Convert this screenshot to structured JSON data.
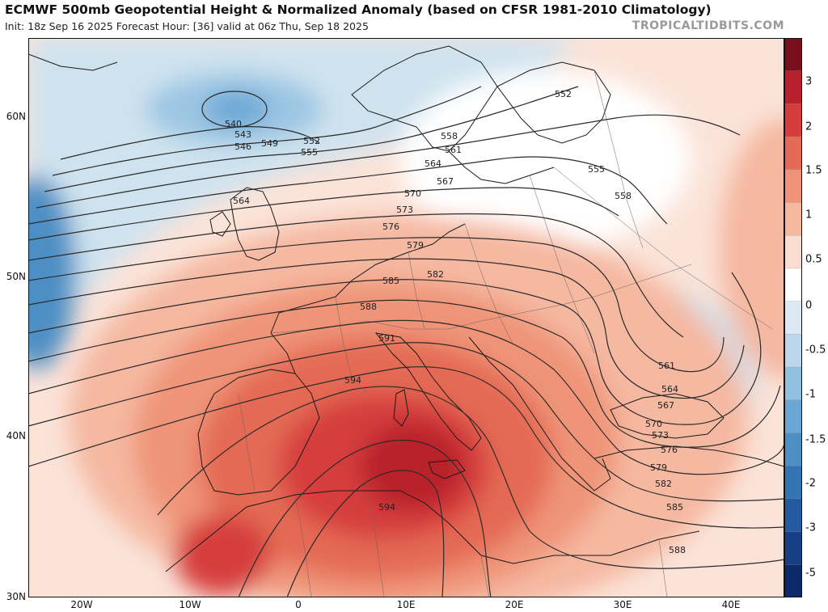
{
  "header": {
    "title": "ECMWF 500mb Geopotential Height & Normalized Anomaly (based on CFSR 1981-2010 Climatology)",
    "subtitle": "Init: 18z Sep 16 2025   Forecast Hour: [36]   valid at 06z Thu, Sep 18 2025",
    "credit": "TROPICALTIDBITS.COM"
  },
  "map": {
    "lat_labels": [
      "60N",
      "50N",
      "40N",
      "30N"
    ],
    "lon_labels": [
      "20W",
      "10W",
      "0",
      "10E",
      "20E",
      "30E",
      "40E"
    ],
    "height_labels": [
      "540",
      "543",
      "546",
      "549",
      "552",
      "555",
      "558",
      "561",
      "564",
      "567",
      "570",
      "573",
      "576",
      "579",
      "582",
      "585",
      "588",
      "591",
      "594",
      "594",
      "552",
      "555",
      "558",
      "561",
      "564",
      "567",
      "570",
      "573",
      "576",
      "579",
      "582",
      "585",
      "588",
      "564"
    ],
    "colors": {
      "strong_positive": "#b8202c",
      "positive": "#e8735a",
      "weak_positive": "#f7c5b0",
      "weak_negative": "#cfe3ef",
      "negative": "#5c9ccc",
      "contour": "#2b2b2b"
    }
  },
  "colorbar": {
    "ticks": [
      "3",
      "2",
      "1.5",
      "1",
      "0.5",
      "0",
      "-0.5",
      "-1",
      "-1.5",
      "-2",
      "-3",
      "-5"
    ],
    "colors": [
      "#7a0f1c",
      "#b8202c",
      "#d63c3c",
      "#e46a55",
      "#ef9478",
      "#f5b8a0",
      "#fadcd0",
      "#ffffff",
      "#dce9f2",
      "#bcd7ea",
      "#92c0e0",
      "#6aa7d5",
      "#4d8fc4",
      "#3574b3",
      "#245aa0",
      "#163f88",
      "#0c2a6a"
    ]
  }
}
